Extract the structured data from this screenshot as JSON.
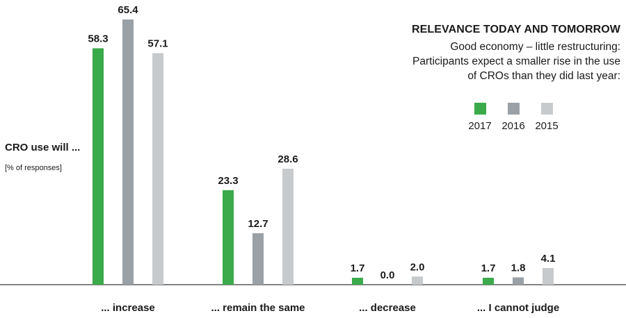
{
  "header": {
    "title": "RELEVANCE TODAY AND TOMORROW",
    "subtitle_lines": [
      "Good economy – little restructuring:",
      "Participants expect a smaller rise in the use",
      "of CROs than they did last year:"
    ]
  },
  "axis": {
    "ylabel": "CRO use will ...",
    "unit": "[% of responses]"
  },
  "legend": {
    "position": "right",
    "items": [
      {
        "label": "2017",
        "color": "#3aaa4a"
      },
      {
        "label": "2016",
        "color": "#9aa1a6"
      },
      {
        "label": "2015",
        "color": "#c7cacc"
      }
    ]
  },
  "chart_data": {
    "type": "bar",
    "categories": [
      "... increase",
      "... remain the same",
      "... decrease",
      "... I cannot judge"
    ],
    "series": [
      {
        "name": "2017",
        "color": "#3aaa4a",
        "values": [
          58.3,
          23.3,
          1.7,
          1.7
        ],
        "labels": [
          "58.3",
          "23.3",
          "1.7",
          "1.7"
        ]
      },
      {
        "name": "2016",
        "color": "#9aa1a6",
        "values": [
          65.4,
          12.7,
          0.0,
          1.8
        ],
        "labels": [
          "65.4",
          "12.7",
          "0.0",
          "1.8"
        ]
      },
      {
        "name": "2015",
        "color": "#c7cacc",
        "values": [
          57.1,
          28.6,
          2.0,
          4.1
        ],
        "labels": [
          "57.1",
          "28.6",
          "2.0",
          "4.1"
        ]
      }
    ],
    "ylim": [
      0,
      70
    ],
    "grid": false
  }
}
